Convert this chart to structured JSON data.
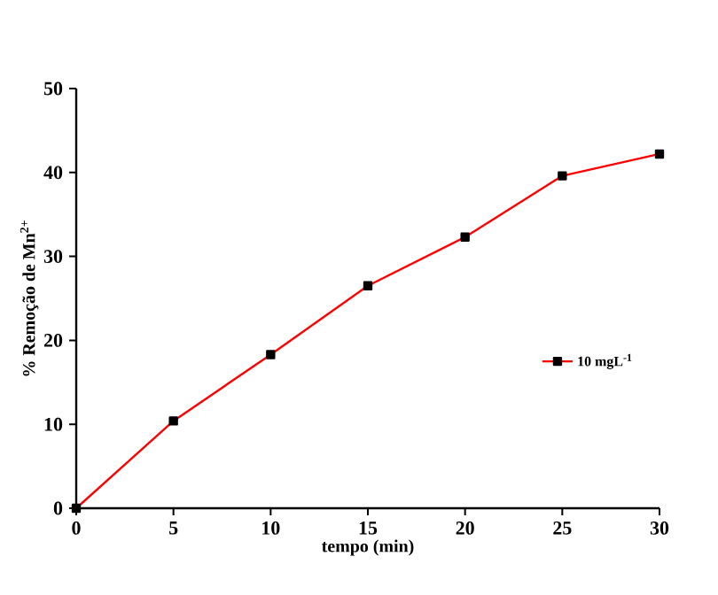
{
  "chart_data": {
    "type": "line",
    "xlabel": "tempo (min)",
    "ylabel": "% Remoção de Mn$^{2+}$",
    "x": [
      0,
      5,
      10,
      15,
      20,
      25,
      30
    ],
    "series": [
      {
        "name": "10 mgL$^{-1}$",
        "color": "#ff0000",
        "values": [
          0,
          10.4,
          18.3,
          26.5,
          32.3,
          39.6,
          42.2
        ]
      }
    ],
    "xlim": [
      0,
      30
    ],
    "ylim": [
      0,
      50
    ],
    "xticks": [
      0,
      5,
      10,
      15,
      20,
      25,
      30
    ],
    "yticks": [
      0,
      10,
      20,
      30,
      40,
      50
    ],
    "marker": "square",
    "legend": "right",
    "grid": false
  }
}
